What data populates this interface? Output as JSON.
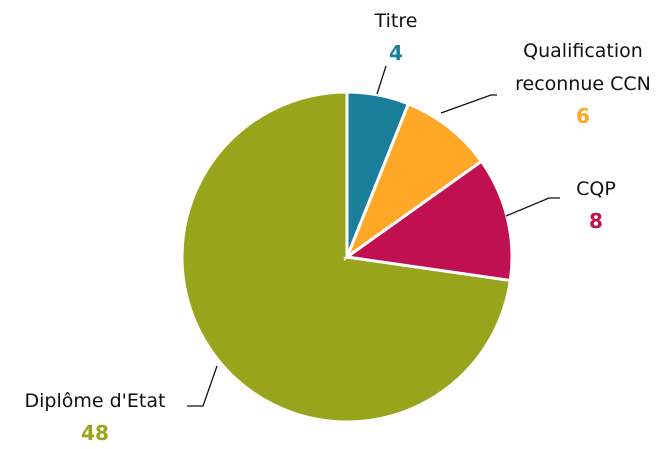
{
  "chart_data": {
    "type": "pie",
    "categories": [
      "Titre",
      "Qualification reconnue CCN",
      "CQP",
      "Diplôme d'Etat"
    ],
    "values": [
      4,
      6,
      8,
      48
    ],
    "colors": [
      "#1b7f9c",
      "#ffa726",
      "#c1104f",
      "#98a41b"
    ]
  }
}
